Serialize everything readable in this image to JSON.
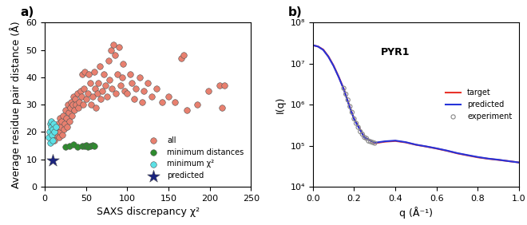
{
  "chart_data": [
    {
      "type": "scatter",
      "title": "a)",
      "x_label": "SAXS discrepancy χ²",
      "y_label": "Average residue pair distance (Å)",
      "xlim": [
        0,
        250
      ],
      "xticks": [
        0,
        50,
        100,
        150,
        200,
        250
      ],
      "ylim": [
        0,
        60
      ],
      "yticks": [
        0,
        10,
        20,
        30,
        40,
        50,
        60
      ],
      "legend": "lower right",
      "series": [
        {
          "name": "all",
          "color": "#e8806f",
          "marker": "o",
          "x": [
            12,
            14,
            15,
            16,
            17,
            18,
            18,
            19,
            20,
            21,
            22,
            23,
            24,
            25,
            26,
            27,
            28,
            29,
            30,
            31,
            32,
            33,
            34,
            35,
            36,
            37,
            38,
            40,
            41,
            42,
            43,
            44,
            45,
            46,
            47,
            48,
            50,
            52,
            53,
            55,
            56,
            58,
            60,
            61,
            62,
            64,
            65,
            67,
            68,
            70,
            72,
            73,
            75,
            77,
            78,
            80,
            81,
            83,
            85,
            86,
            88,
            90,
            92,
            94,
            95,
            97,
            100,
            103,
            105,
            108,
            110,
            115,
            118,
            120,
            125,
            130,
            135,
            142,
            150,
            158,
            165,
            168,
            172,
            185,
            198,
            212,
            215,
            218
          ],
          "values": [
            17,
            19,
            21,
            23,
            18,
            20,
            25,
            22,
            24,
            19,
            26,
            21,
            23,
            28,
            25,
            22,
            30,
            27,
            24,
            29,
            31,
            26,
            30,
            33,
            28,
            32,
            30,
            34,
            29,
            31,
            35,
            33,
            41,
            30,
            36,
            42,
            32,
            34,
            41,
            38,
            30,
            33,
            42,
            36,
            29,
            34,
            38,
            44,
            32,
            35,
            41,
            37,
            33,
            46,
            39,
            50,
            36,
            52,
            48,
            34,
            41,
            51,
            37,
            40,
            45,
            35,
            34,
            41,
            38,
            32,
            36,
            40,
            31,
            35,
            38,
            33,
            36,
            31,
            33,
            31,
            47,
            48,
            28,
            30,
            35,
            37,
            29,
            37
          ]
        },
        {
          "name": "minimum distances",
          "color": "#2e8b2e",
          "marker": "o",
          "x": [
            25,
            30,
            35,
            40,
            45,
            48,
            50,
            52,
            55,
            58,
            60
          ],
          "values": [
            14.5,
            15,
            15.5,
            14.5,
            15,
            14.8,
            15.2,
            14.6,
            15,
            15.3,
            14.9
          ]
        },
        {
          "name": "minimum χ²",
          "color": "#5ce1e6",
          "marker": "o",
          "x": [
            5,
            6,
            7,
            7,
            8,
            8,
            9,
            10,
            10,
            11,
            12,
            13
          ],
          "values": [
            18,
            20,
            23,
            16,
            22,
            24,
            19,
            17,
            21,
            23,
            20,
            22
          ]
        },
        {
          "name": "predicted",
          "color": "#1a237e",
          "marker": "*",
          "x": [
            10
          ],
          "values": [
            9.5
          ]
        }
      ]
    },
    {
      "type": "line",
      "title": "b)",
      "annotations": [
        "PYR1"
      ],
      "x_label": "q (Å⁻¹)",
      "y_label": "I(q)",
      "log": "y",
      "xlim": [
        0,
        1.0
      ],
      "xticks": [
        0.0,
        0.2,
        0.4,
        0.6,
        0.8,
        1.0
      ],
      "ylim": [
        10000,
        100000000
      ],
      "yticks": [
        {
          "value": 10000,
          "label": "10⁴"
        },
        {
          "value": 100000,
          "label": "10⁵"
        },
        {
          "value": 1000000,
          "label": "10⁶"
        },
        {
          "value": 10000000,
          "label": "10⁷"
        },
        {
          "value": 100000000,
          "label": "10⁸"
        }
      ],
      "legend": "center right",
      "series": [
        {
          "name": "target",
          "type": "line",
          "color": "#e8332b",
          "line_style": "solid",
          "x": [
            0.0,
            0.025,
            0.05,
            0.075,
            0.1,
            0.125,
            0.15,
            0.175,
            0.2,
            0.25,
            0.3,
            0.35,
            0.4,
            0.45,
            0.5,
            0.55,
            0.6,
            0.65,
            0.7,
            0.75,
            0.8,
            0.85,
            0.9,
            0.95,
            1.0
          ],
          "values": [
            28000000,
            26000000,
            22000000,
            15000000,
            9000000,
            4800000,
            2400000,
            1000000,
            450000,
            160000,
            115000,
            125000,
            130000,
            120000,
            105000,
            95000,
            85000,
            75000,
            65000,
            58000,
            52000,
            48000,
            45000,
            42000,
            39000
          ]
        },
        {
          "name": "predicted",
          "type": "line",
          "color": "#2633d9",
          "line_style": "solid",
          "x": [
            0.0,
            0.025,
            0.05,
            0.075,
            0.1,
            0.125,
            0.15,
            0.175,
            0.2,
            0.25,
            0.3,
            0.35,
            0.4,
            0.45,
            0.5,
            0.55,
            0.6,
            0.65,
            0.7,
            0.75,
            0.8,
            0.85,
            0.9,
            0.95,
            1.0
          ],
          "values": [
            28000000,
            26000000,
            21500000,
            14700000,
            8800000,
            4700000,
            2350000,
            980000,
            440000,
            158000,
            118000,
            128000,
            133000,
            122000,
            106000,
            96000,
            86000,
            76000,
            66000,
            59000,
            53000,
            48500,
            45500,
            42000,
            39000
          ]
        },
        {
          "name": "experiment",
          "type": "scatter",
          "color": "#888888",
          "marker": "o",
          "x": [
            0.15,
            0.16,
            0.17,
            0.18,
            0.19,
            0.2,
            0.21,
            0.22,
            0.23,
            0.24,
            0.25,
            0.26,
            0.27,
            0.28,
            0.29,
            0.3
          ],
          "values": [
            2500000,
            1800000,
            1300000,
            900000,
            650000,
            450000,
            350000,
            280000,
            220000,
            190000,
            160000,
            150000,
            130000,
            125000,
            120000,
            115000
          ]
        }
      ]
    }
  ]
}
